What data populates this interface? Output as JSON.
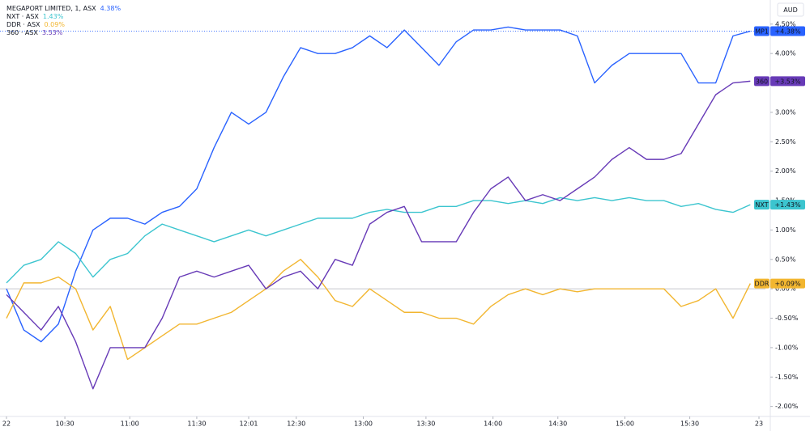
{
  "chart_data": {
    "type": "line",
    "unit": "AUD",
    "x": [
      0,
      8,
      16,
      24,
      32,
      40,
      48,
      56,
      64,
      72,
      80,
      88,
      96,
      104,
      112,
      120,
      128,
      136,
      144,
      152,
      160,
      168,
      176,
      184,
      192,
      200,
      208,
      216,
      224,
      232,
      240,
      248,
      256,
      264,
      272,
      280,
      288,
      296,
      304,
      312,
      320,
      328,
      336,
      344
    ],
    "xlim": [
      -3,
      351
    ],
    "xticks": [
      {
        "value": 0,
        "label": "22"
      },
      {
        "value": 27,
        "label": "10:30"
      },
      {
        "value": 57,
        "label": "11:00"
      },
      {
        "value": 88,
        "label": "11:30"
      },
      {
        "value": 112,
        "label": "12:01"
      },
      {
        "value": 134,
        "label": "12:30"
      },
      {
        "value": 165,
        "label": "13:00"
      },
      {
        "value": 194,
        "label": "13:30"
      },
      {
        "value": 225,
        "label": "14:00"
      },
      {
        "value": 255,
        "label": "14:30"
      },
      {
        "value": 286,
        "label": "15:00"
      },
      {
        "value": 316,
        "label": "15:30"
      },
      {
        "value": 348,
        "label": "23"
      }
    ],
    "ylim": [
      -2.17,
      4.91
    ],
    "yticks": [
      {
        "value": 4.5,
        "label": "4.50%"
      },
      {
        "value": 4,
        "label": "4.00%"
      },
      {
        "value": 3.5,
        "label": "3.50%"
      },
      {
        "value": 3,
        "label": "3.00%"
      },
      {
        "value": 2.5,
        "label": "2.50%"
      },
      {
        "value": 2,
        "label": "2.00%"
      },
      {
        "value": 1.5,
        "label": "1.50%"
      },
      {
        "value": 1,
        "label": "1.00%"
      },
      {
        "value": 0.5,
        "label": "0.50%"
      },
      {
        "value": 0,
        "label": "0.00%"
      },
      {
        "value": -0.5,
        "label": "-0.50%"
      },
      {
        "value": -1,
        "label": "-1.00%"
      },
      {
        "value": -1.5,
        "label": "-1.50%"
      },
      {
        "value": -2,
        "label": "-2.00%"
      }
    ],
    "series": [
      {
        "name": "MEGAPORT LIMITED, 1, ASX",
        "symbol": "MP1",
        "color": "#2962ff",
        "last_label": "4.38%",
        "badge_label": "+4.38%",
        "last_value": 4.38,
        "values": [
          0.0,
          -0.7,
          -0.9,
          -0.6,
          0.3,
          1.0,
          1.2,
          1.2,
          1.1,
          1.3,
          1.4,
          1.7,
          2.4,
          3.0,
          2.8,
          3.0,
          3.6,
          4.1,
          4.0,
          4.0,
          4.1,
          4.3,
          4.1,
          4.4,
          4.1,
          3.8,
          4.2,
          4.4,
          4.4,
          4.45,
          4.4,
          4.4,
          4.4,
          4.3,
          3.5,
          3.8,
          4.0,
          4.0,
          4.0,
          4.0,
          3.5,
          3.5,
          4.3,
          4.38
        ]
      },
      {
        "name": "NXT · ASX",
        "symbol": "NXT",
        "color": "#3cc5cf",
        "last_label": "1.43%",
        "badge_label": "+1.43%",
        "last_value": 1.43,
        "values": [
          0.1,
          0.4,
          0.5,
          0.8,
          0.6,
          0.2,
          0.5,
          0.6,
          0.9,
          1.1,
          1.0,
          0.9,
          0.8,
          0.9,
          1.0,
          0.9,
          1.0,
          1.1,
          1.2,
          1.2,
          1.2,
          1.3,
          1.35,
          1.3,
          1.3,
          1.4,
          1.4,
          1.5,
          1.5,
          1.45,
          1.5,
          1.45,
          1.55,
          1.5,
          1.55,
          1.5,
          1.55,
          1.5,
          1.5,
          1.4,
          1.45,
          1.35,
          1.3,
          1.43
        ]
      },
      {
        "name": "DDR · ASX",
        "symbol": "DDR",
        "color": "#f2b630",
        "last_label": "0.09%",
        "badge_label": "+0.09%",
        "last_value": 0.09,
        "values": [
          -0.5,
          0.1,
          0.1,
          0.2,
          0.0,
          -0.7,
          -0.3,
          -1.2,
          -1.0,
          -0.8,
          -0.6,
          -0.6,
          -0.5,
          -0.4,
          -0.2,
          0.0,
          0.3,
          0.5,
          0.2,
          -0.2,
          -0.3,
          0.0,
          -0.2,
          -0.4,
          -0.4,
          -0.5,
          -0.5,
          -0.6,
          -0.3,
          -0.1,
          0.0,
          -0.1,
          0.0,
          -0.05,
          0.0,
          0.0,
          0.0,
          0.0,
          0.0,
          -0.3,
          -0.2,
          0.0,
          -0.5,
          0.09
        ]
      },
      {
        "name": "360 · ASX",
        "symbol": "360",
        "color": "#673ab7",
        "last_label": "3.53%",
        "badge_label": "+3.53%",
        "last_value": 3.53,
        "values": [
          -0.1,
          -0.4,
          -0.7,
          -0.3,
          -0.9,
          -1.7,
          -1.0,
          -1.0,
          -1.0,
          -0.5,
          0.2,
          0.3,
          0.2,
          0.3,
          0.4,
          0.0,
          0.2,
          0.3,
          0.0,
          0.5,
          0.4,
          1.1,
          1.3,
          1.4,
          0.8,
          0.8,
          0.8,
          1.3,
          1.7,
          1.9,
          1.5,
          1.6,
          1.5,
          1.7,
          1.9,
          2.2,
          2.4,
          2.2,
          2.2,
          2.3,
          2.8,
          3.3,
          3.5,
          3.53
        ]
      }
    ]
  }
}
